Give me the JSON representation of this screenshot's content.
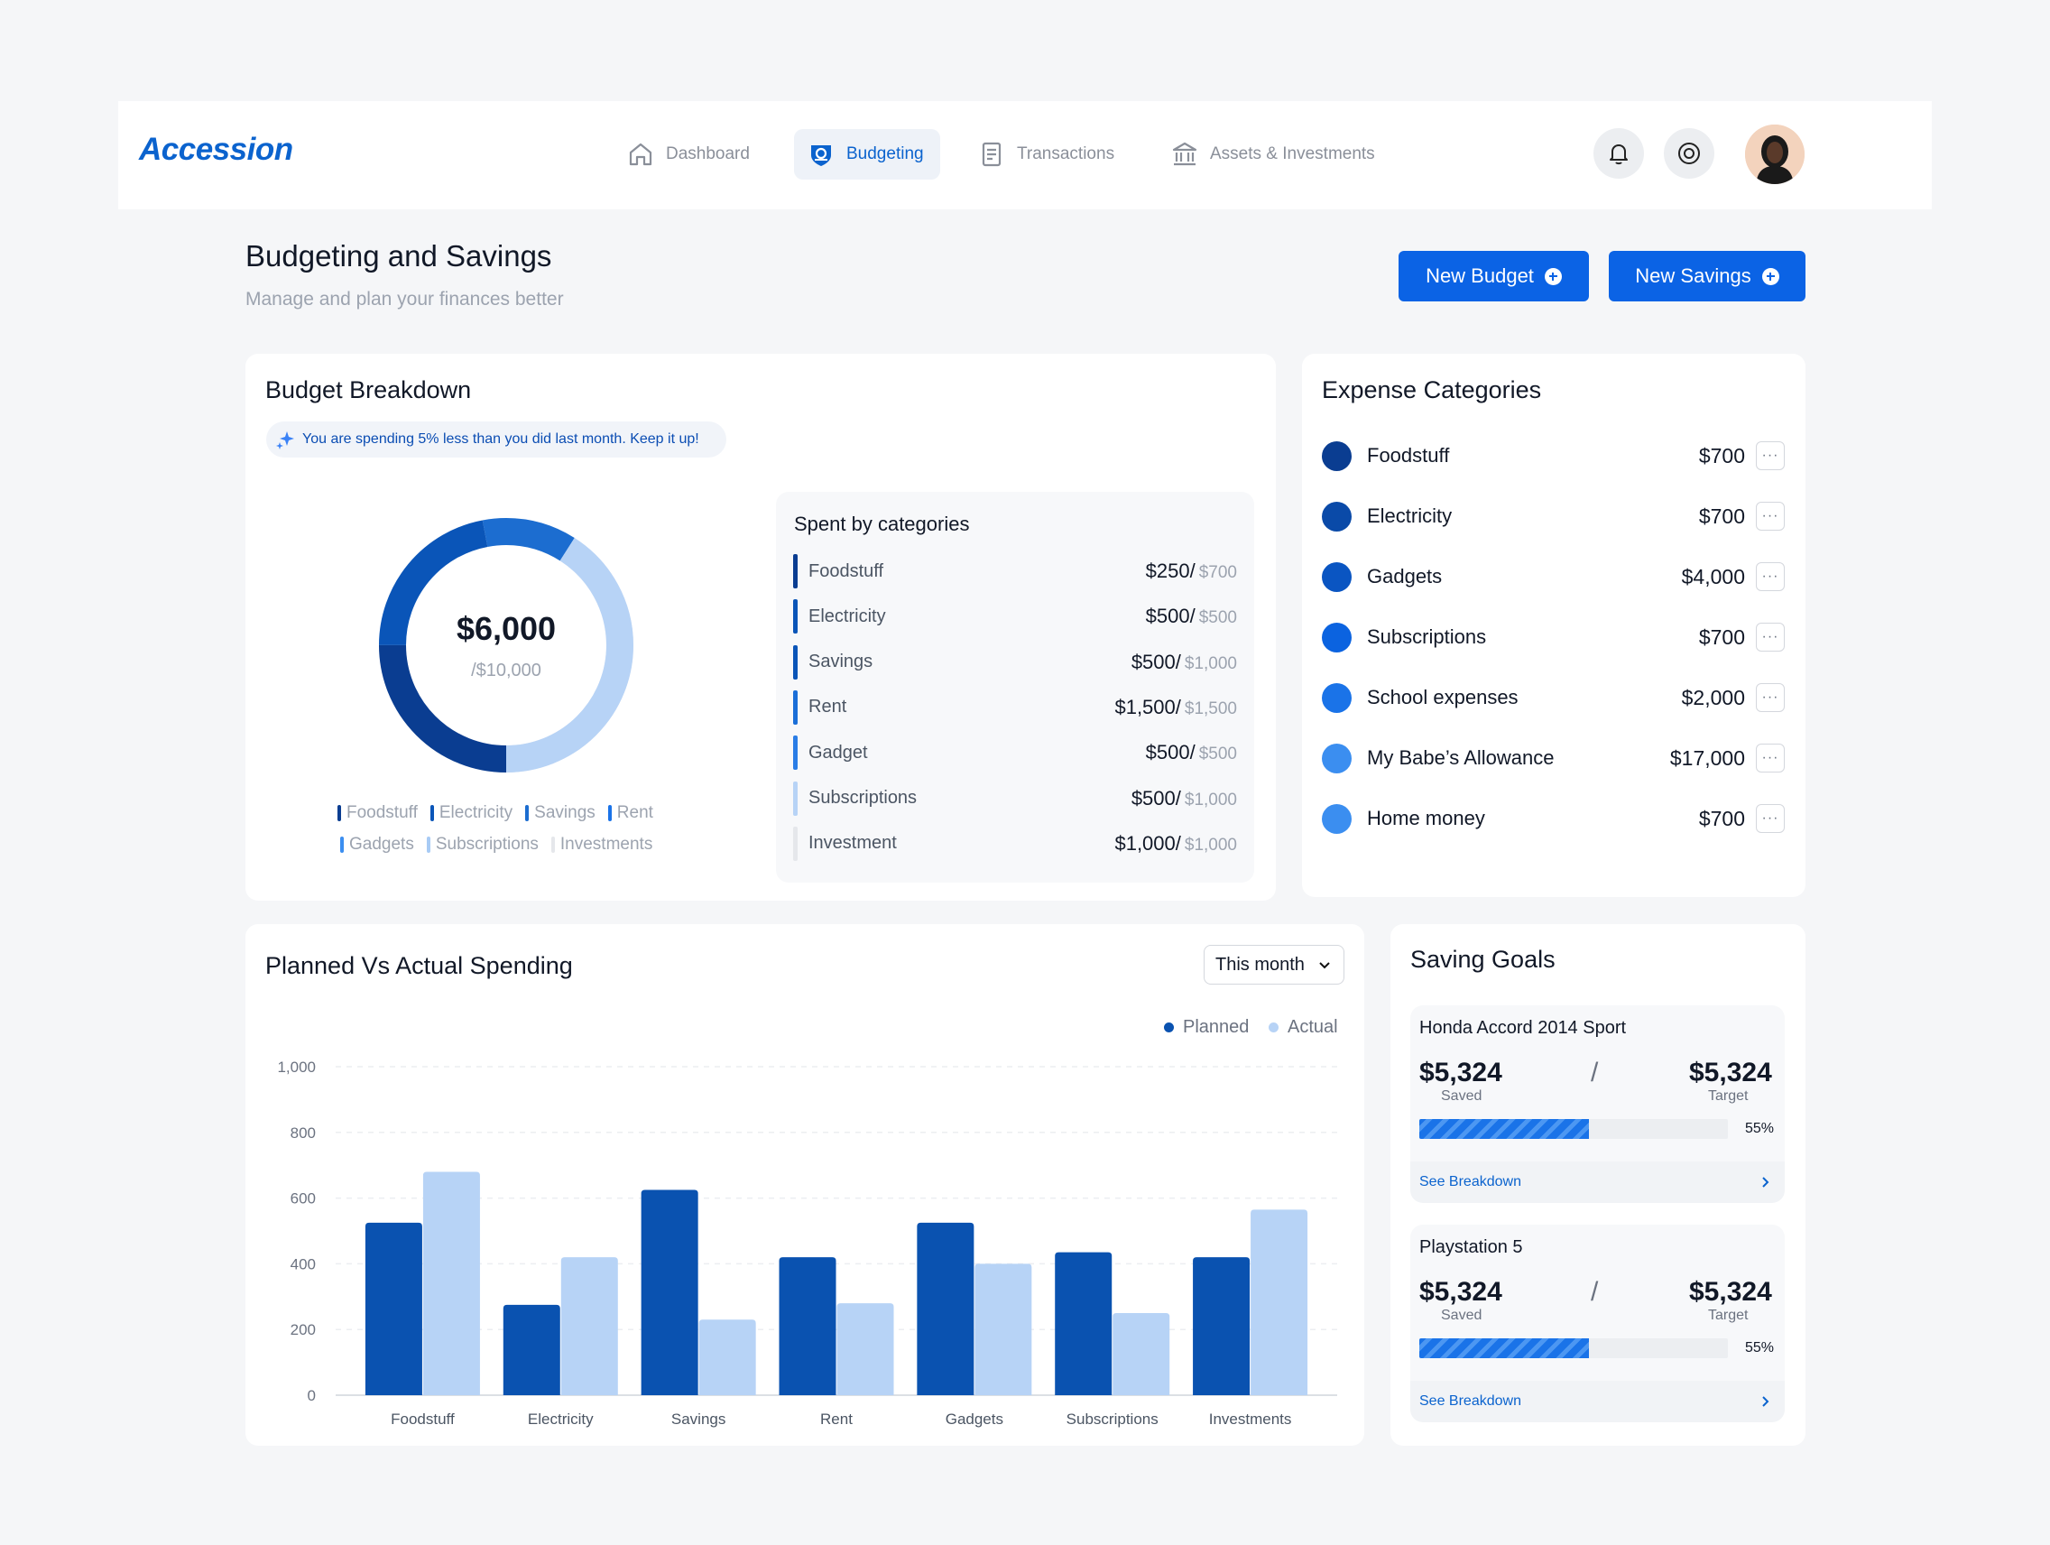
{
  "brand": {
    "name": "Accession",
    "color": "#0b63ce"
  },
  "nav": {
    "items": [
      {
        "label": "Dashboard",
        "icon": "home-icon",
        "active": false
      },
      {
        "label": "Budgeting",
        "icon": "budget-shield-icon",
        "active": true
      },
      {
        "label": "Transactions",
        "icon": "receipt-icon",
        "active": false
      },
      {
        "label": "Assets & Investments",
        "icon": "bank-icon",
        "active": false
      }
    ],
    "actions": [
      "bell-icon",
      "gear-icon"
    ],
    "avatar": "user-avatar"
  },
  "header": {
    "title": "Budgeting and Savings",
    "subtitle": "Manage and plan your finances better",
    "new_budget_label": "New Budget",
    "new_savings_label": "New Savings"
  },
  "budget_breakdown": {
    "title": "Budget Breakdown",
    "hint": "You are spending 5% less than you did last month. Keep it up!",
    "total_spent": "$6,000",
    "total_budget": "/$10,000",
    "spent_fraction": 0.6,
    "donut_segments": [
      {
        "label": "Foodstuff",
        "fraction": 0.25,
        "color": "#0a3d91"
      },
      {
        "label": "Electricity",
        "fraction": 0.22,
        "color": "#0a55b8"
      },
      {
        "label": "Savings",
        "fraction": 0.12,
        "color": "#1c6dd0"
      },
      {
        "label": "Remaining",
        "fraction": 0.41,
        "color": "#b7d3f6"
      }
    ],
    "remainder_color": "#e5e7eb",
    "legend": [
      {
        "label": "Foodstuff",
        "color": "#0a3d91"
      },
      {
        "label": "Electricity",
        "color": "#0a55b8"
      },
      {
        "label": "Savings",
        "color": "#1c6dd0"
      },
      {
        "label": "Rent",
        "color": "#1a73e8"
      },
      {
        "label": "Gadgets",
        "color": "#3b8ef0"
      },
      {
        "label": "Subscriptions",
        "color": "#a8cbf5"
      },
      {
        "label": "Investments",
        "color": "#e5e7eb"
      }
    ],
    "spent_title": "Spent by categories",
    "spent": [
      {
        "name": "Foodstuff",
        "spent": "$250/",
        "of": "$700",
        "color": "#0a3d91"
      },
      {
        "name": "Electricity",
        "spent": "$500/",
        "of": "$500",
        "color": "#0a55b8"
      },
      {
        "name": "Savings",
        "spent": "$500/",
        "of": "$1,000",
        "color": "#0a55b8"
      },
      {
        "name": "Rent",
        "spent": "$1,500/",
        "of": "$1,500",
        "color": "#1a6ed8"
      },
      {
        "name": "Gadget",
        "spent": "$500/",
        "of": "$500",
        "color": "#2a7de6"
      },
      {
        "name": "Subscriptions",
        "spent": "$500/",
        "of": "$1,000",
        "color": "#b7d3f6"
      },
      {
        "name": "Investment",
        "spent": "$1,000/",
        "of": "$1,000",
        "color": "#e5e7eb"
      }
    ]
  },
  "expense_categories": {
    "title": "Expense Categories",
    "items": [
      {
        "name": "Foodstuff",
        "amount": "$700",
        "color": "#0a3d91"
      },
      {
        "name": "Electricity",
        "amount": "$700",
        "color": "#0a4aa8"
      },
      {
        "name": "Gadgets",
        "amount": "$4,000",
        "color": "#0a55c2"
      },
      {
        "name": "Subscriptions",
        "amount": "$700",
        "color": "#0b63e0"
      },
      {
        "name": "School expenses",
        "amount": "$2,000",
        "color": "#1a73e8"
      },
      {
        "name": "My Babe’s Allowance",
        "amount": "$17,000",
        "color": "#3b8ef0"
      },
      {
        "name": "Home money",
        "amount": "$700",
        "color": "#3b8ef0"
      }
    ],
    "more_glyph": "···"
  },
  "planned_vs_actual": {
    "title": "Planned Vs Actual Spending",
    "period": "This month",
    "planned_label": "Planned",
    "actual_label": "Actual"
  },
  "chart_data": {
    "type": "bar",
    "categories": [
      "Foodstuff",
      "Electricity",
      "Savings",
      "Rent",
      "Gadgets",
      "Subscriptions",
      "Investments"
    ],
    "series": [
      {
        "name": "Planned",
        "values": [
          525,
          275,
          625,
          420,
          525,
          435,
          420
        ],
        "color": "#0a52b0"
      },
      {
        "name": "Actual",
        "values": [
          680,
          420,
          230,
          280,
          400,
          250,
          565
        ],
        "color": "#b7d3f6"
      }
    ],
    "yticks": [
      "0",
      "200",
      "400",
      "600",
      "800",
      "1,000"
    ],
    "ylim": [
      0,
      1000
    ],
    "grid": true,
    "legend_position": "top-right"
  },
  "saving_goals": {
    "title": "Saving Goals",
    "goals": [
      {
        "name": "Honda Accord 2014 Sport",
        "saved": "$5,324",
        "saved_label": "Saved",
        "target": "$5,324",
        "target_label": "Target",
        "progress": 0.55,
        "percent": "55%",
        "link": "See Breakdown"
      },
      {
        "name": "Playstation 5",
        "saved": "$5,324",
        "saved_label": "Saved",
        "target": "$5,324",
        "target_label": "Target",
        "progress": 0.55,
        "percent": "55%",
        "link": "See Breakdown"
      }
    ],
    "slash": "/"
  }
}
